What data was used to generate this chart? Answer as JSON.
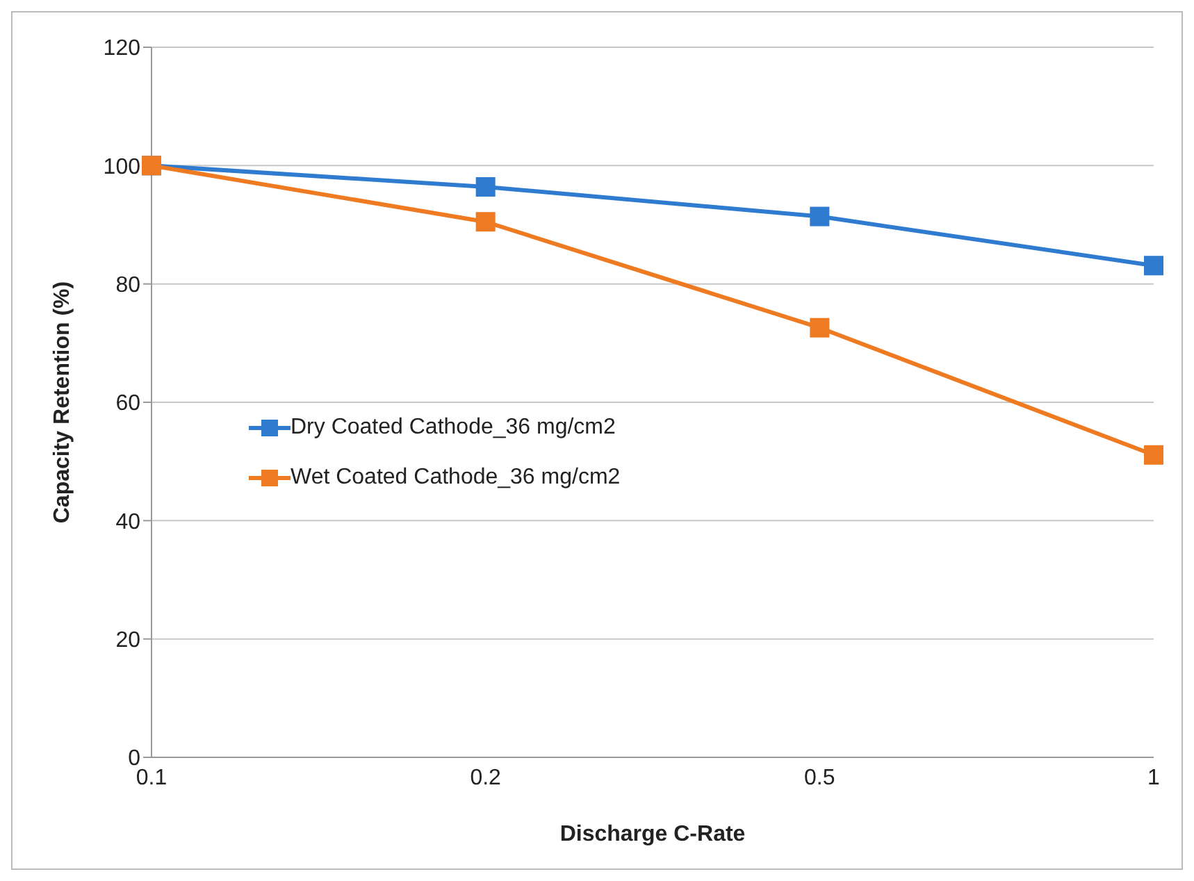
{
  "chart_data": {
    "type": "line",
    "xlabel": "Discharge C-Rate",
    "ylabel": "Capacity Retention (%)",
    "categories": [
      "0.1",
      "0.2",
      "0.5",
      "1"
    ],
    "series": [
      {
        "name": "Dry Coated Cathode_36 mg/cm2",
        "color": "#2e7bcf",
        "values": [
          100,
          96.4,
          91.4,
          83.1
        ]
      },
      {
        "name": "Wet Coated Cathode_36 mg/cm2",
        "color": "#ee7a22",
        "values": [
          100,
          90.5,
          72.6,
          51.1
        ]
      }
    ],
    "ylim": [
      0,
      120
    ],
    "yticks": [
      0,
      20,
      40,
      60,
      80,
      100,
      120
    ],
    "grid": "y",
    "legend": "left",
    "marker": "square",
    "line_style": "solid"
  }
}
